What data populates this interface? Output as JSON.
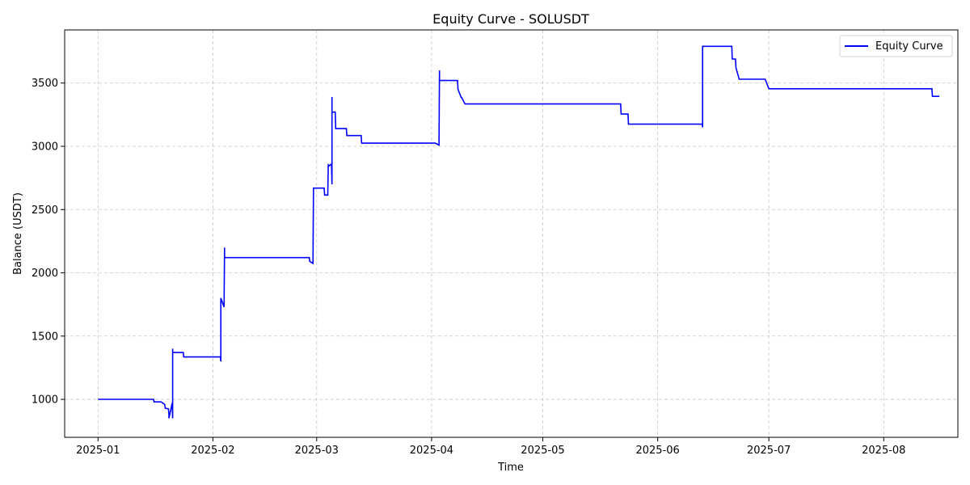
{
  "chart_data": {
    "type": "line",
    "title": "Equity Curve - SOLUSDT",
    "xlabel": "Time",
    "ylabel": "Balance (USDT)",
    "x_type": "date",
    "xlim": [
      "2024-12-23",
      "2025-08-21"
    ],
    "ylim": [
      700,
      3920
    ],
    "x_ticks": [
      "2025-01",
      "2025-02",
      "2025-03",
      "2025-04",
      "2025-05",
      "2025-06",
      "2025-07",
      "2025-08"
    ],
    "y_ticks": [
      1000,
      1500,
      2000,
      2500,
      3000,
      3500
    ],
    "grid": true,
    "legend": "top-right",
    "colors": {
      "line": "#0000ff",
      "grid": "#b0b0b0"
    },
    "series": [
      {
        "name": "Equity Curve",
        "x": [
          "2025-01-01",
          "2025-01-16",
          "2025-01-16",
          "2025-01-18",
          "2025-01-19",
          "2025-01-19",
          "2025-01-20",
          "2025-01-20",
          "2025-01-20",
          "2025-01-21",
          "2025-01-21",
          "2025-01-21",
          "2025-01-21",
          "2025-01-21",
          "2025-01-22",
          "2025-01-22",
          "2025-01-22",
          "2025-01-24",
          "2025-01-24",
          "2025-02-03",
          "2025-02-03",
          "2025-02-03",
          "2025-02-03",
          "2025-02-03",
          "2025-02-03",
          "2025-02-04",
          "2025-02-04",
          "2025-02-04",
          "2025-02-04",
          "2025-02-04",
          "2025-02-04",
          "2025-02-04",
          "2025-02-04",
          "2025-02-05",
          "2025-02-05",
          "2025-02-05",
          "2025-02-27",
          "2025-02-27",
          "2025-02-28",
          "2025-02-28",
          "2025-02-28",
          "2025-03-03",
          "2025-03-03",
          "2025-03-04",
          "2025-03-04",
          "2025-03-04",
          "2025-03-05",
          "2025-03-05",
          "2025-03-05",
          "2025-03-05",
          "2025-03-06",
          "2025-03-06",
          "2025-03-06",
          "2025-03-09",
          "2025-03-09",
          "2025-03-13",
          "2025-03-13",
          "2025-04-02",
          "2025-04-03",
          "2025-04-03",
          "2025-04-03",
          "2025-04-03",
          "2025-04-08",
          "2025-04-08",
          "2025-04-09",
          "2025-04-09",
          "2025-04-10",
          "2025-04-10",
          "2025-05-22",
          "2025-05-22",
          "2025-05-24",
          "2025-05-24",
          "2025-06-13",
          "2025-06-13",
          "2025-06-13",
          "2025-06-21",
          "2025-06-21",
          "2025-06-22",
          "2025-06-22",
          "2025-06-23",
          "2025-06-23",
          "2025-06-30",
          "2025-07-01",
          "2025-08-14",
          "2025-08-14",
          "2025-08-16"
        ],
        "values": [
          1000,
          1000,
          980,
          980,
          960,
          930,
          925,
          880,
          850,
          970,
          850,
          1140,
          1400,
          1370,
          1370,
          1370,
          1370,
          1370,
          1335,
          1335,
          1300,
          1600,
          1800,
          1720,
          1800,
          1730,
          2200,
          2170,
          2170,
          2120,
          2120,
          2120,
          2120,
          2120,
          2120,
          2120,
          2120,
          2090,
          2075,
          2670,
          2670,
          2670,
          2615,
          2615,
          2860,
          2840,
          2860,
          2700,
          3390,
          3270,
          3270,
          3140,
          3140,
          3140,
          3085,
          3085,
          3025,
          3025,
          3010,
          3600,
          3520,
          3520,
          3520,
          3450,
          3385,
          3385,
          3335,
          3335,
          3335,
          3255,
          3255,
          3175,
          3175,
          3150,
          3790,
          3790,
          3690,
          3690,
          3620,
          3530,
          3530,
          3530,
          3455,
          3455,
          3395,
          3395
        ]
      }
    ]
  }
}
